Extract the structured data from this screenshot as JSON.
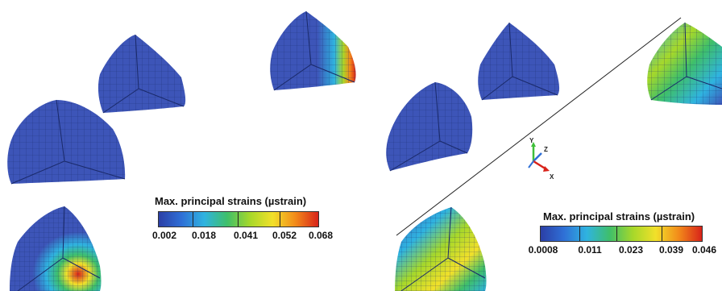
{
  "legend_left": {
    "title": "Max. principal strains (µstrain)",
    "ticks": [
      "0.002",
      "0.018",
      "0.041",
      "0.052",
      "0.068"
    ],
    "colors": [
      "#2b3fa6",
      "#2f6fd6",
      "#2fb3e0",
      "#3fbf6a",
      "#a6d82a",
      "#f2e02a",
      "#f28a1a",
      "#d8231a"
    ]
  },
  "legend_right": {
    "title": "Max. principal strains (µstrain)",
    "ticks": [
      "0.0008",
      "0.011",
      "0.023",
      "0.039",
      "0.046"
    ],
    "colors": [
      "#2b3fa6",
      "#2f6fd6",
      "#2fb3e0",
      "#3fbf6a",
      "#a6d82a",
      "#f2e02a",
      "#f28a1a",
      "#d8231a"
    ]
  },
  "axes_triad": {
    "labels": [
      "Y",
      "Z",
      "X"
    ]
  }
}
